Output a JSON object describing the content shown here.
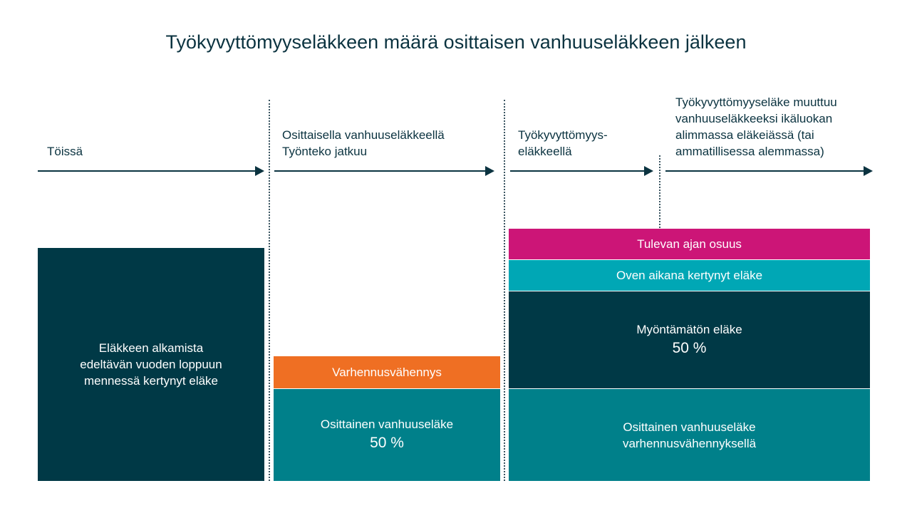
{
  "title": "Työkyvyttömyyseläkkeen määrä osittaisen vanhuuseläkkeen jälkeen",
  "phases": [
    {
      "label": "Töissä"
    },
    {
      "label": "Osittaisella vanhuuseläkkeellä\nTyönteko jatkuu"
    },
    {
      "label": "Työkyvyttömyys-\neläkkeellä"
    },
    {
      "label": "Työkyvyttömyyseläke muuttuu\nvanhuuseläkkeeksi ikäluokan\nalimmassa eläkeiässä (tai\nammatillisessa alemmassa)"
    }
  ],
  "blocks": {
    "accrued": "Eläkkeen alkamista\nedeltävän vuoden loppuun\nmennessä kertynyt eläke",
    "early_reduction": "Varhennusvähennys",
    "partial_pension": "Osittainen vanhuuseläke",
    "partial_pension_pct": "50 %",
    "future_time": "Tulevan ajan osuus",
    "accrued_during": "Oven aikana kertynyt eläke",
    "ungranted": "Myöntämätön eläke",
    "ungranted_pct": "50 %",
    "partial_with_reduction": "Osittainen vanhuuseläke\nvarhennusvähennyksellä"
  },
  "colors": {
    "dark": "#003946",
    "teal": "#00808a",
    "orange": "#ef6f23",
    "magenta": "#cc1577",
    "light_teal": "#00a7b5"
  }
}
